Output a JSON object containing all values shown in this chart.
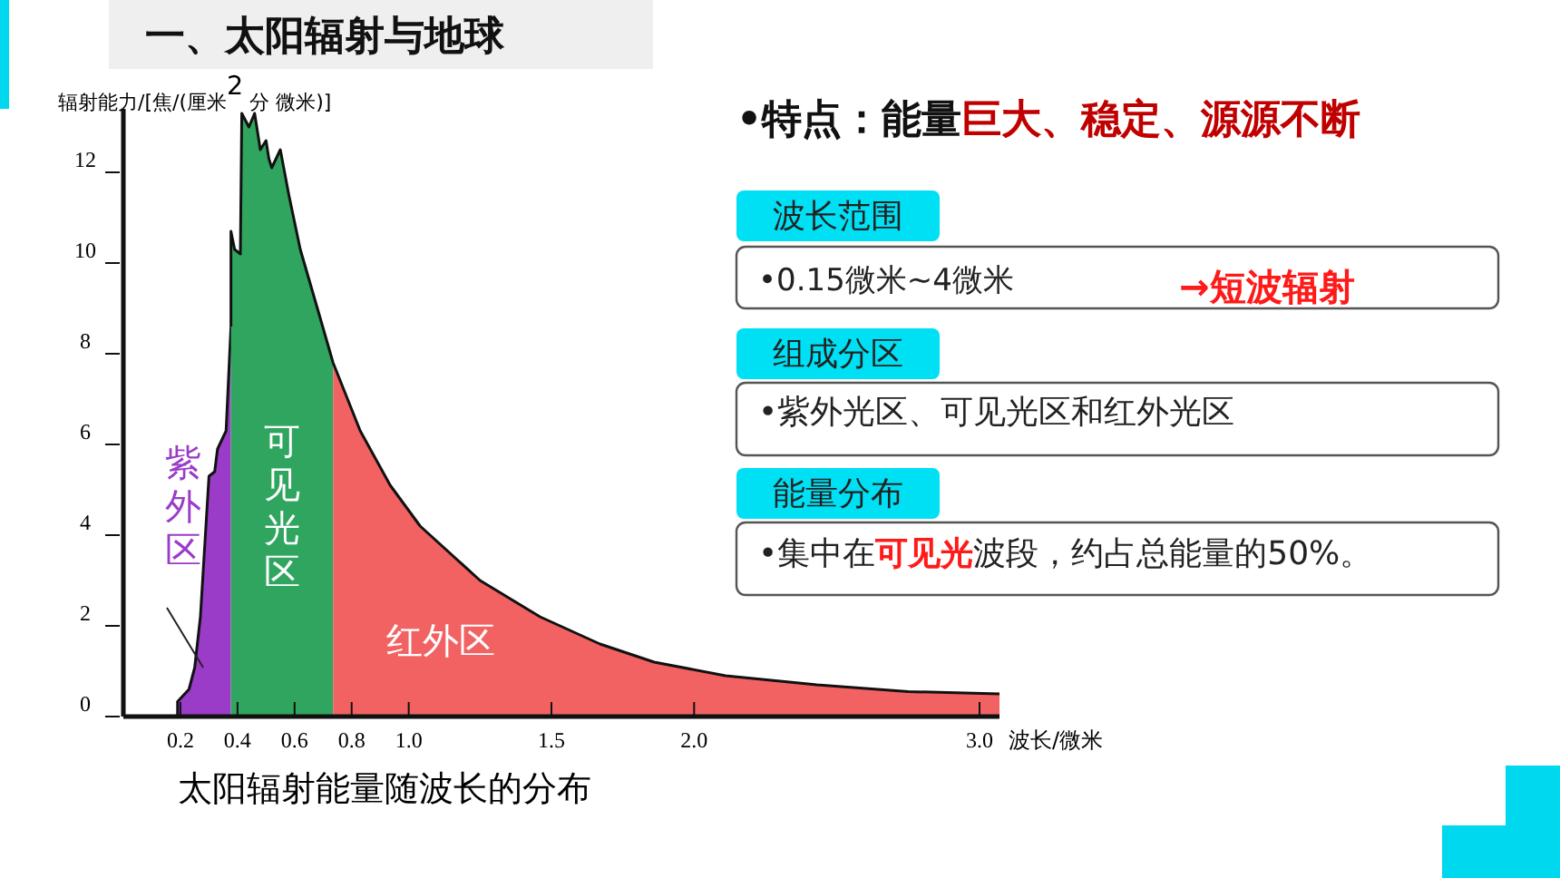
{
  "chart_data": {
    "type": "area",
    "title": "太阳辐射能量随波长的分布",
    "xlabel": "波长/微米",
    "ylabel": "辐射能力/[焦/(厘米$^{2}$ 分 微米)]",
    "xlim": [
      0,
      3.07
    ],
    "ylim": [
      0,
      13.4
    ],
    "xticks": [
      0.2,
      0.4,
      0.6,
      0.8,
      "1.0",
      1.5,
      "2.0",
      "3.0"
    ],
    "yticks": [
      0,
      2,
      4,
      6,
      8,
      10,
      12
    ],
    "grid": false,
    "series": [
      {
        "name": "紫外区",
        "color": "#9a3cc8",
        "x": [
          0.19,
          0.19,
          0.23,
          0.25,
          0.27,
          0.3,
          0.32,
          0.33,
          0.36,
          0.377
        ],
        "values": [
          0,
          0.33,
          0.6,
          1.08,
          2.2,
          5.3,
          5.4,
          5.9,
          6.3,
          8.6
        ]
      },
      {
        "name": "可见光区",
        "color": "#2fa55f",
        "x": [
          0.377,
          0.377,
          0.39,
          0.41,
          0.415,
          0.44,
          0.46,
          0.48,
          0.5,
          0.51,
          0.52,
          0.55,
          0.58,
          0.62,
          0.68,
          0.735
        ],
        "values": [
          8.6,
          10.7,
          10.3,
          10.2,
          13.3,
          13.0,
          13.3,
          12.5,
          12.7,
          12.3,
          12.1,
          12.5,
          11.5,
          10.3,
          9.0,
          7.8
        ]
      },
      {
        "name": "红外区",
        "color": "#f26262",
        "x": [
          0.735,
          0.83,
          0.935,
          1.04,
          1.25,
          1.46,
          1.67,
          1.86,
          2.11,
          2.43,
          2.75,
          3.07
        ],
        "values": [
          7.8,
          6.3,
          5.1,
          4.2,
          3.0,
          2.2,
          1.6,
          1.2,
          0.9,
          0.7,
          0.55,
          0.5
        ]
      }
    ],
    "annotations": [
      "一、太阳辐射与地球",
      "•特点：能量",
      "巨大、稳定、源源不断",
      "波长范围",
      "•0.15微米~4微米",
      "→短波辐射",
      "组成分区",
      "•紫外光区、可见光区和红外光区",
      "能量分布",
      "•集中在",
      "可见光",
      "波段，约占总能量的50%。"
    ]
  }
}
